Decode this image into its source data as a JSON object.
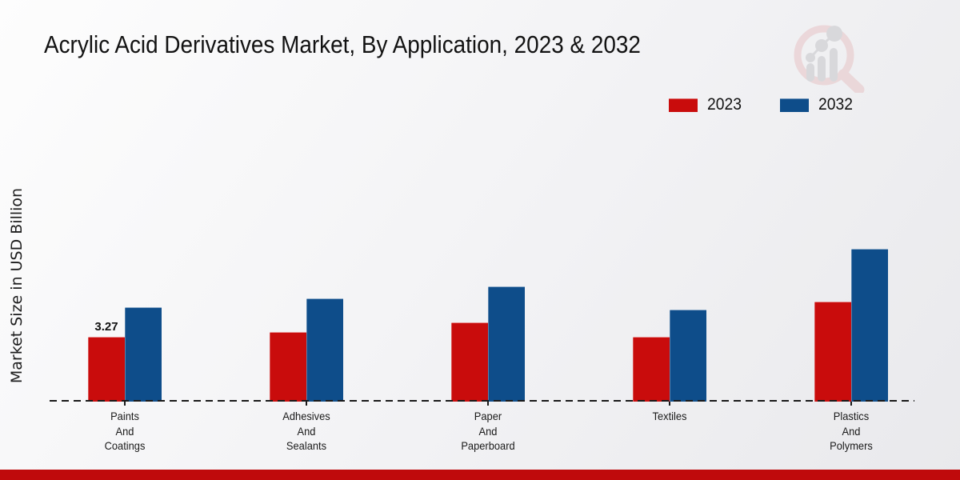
{
  "chart_data": {
    "type": "bar",
    "title": "Acrylic Acid Derivatives Market, By Application, 2023 & 2032",
    "ylabel": "Market Size in USD Billion",
    "xlabel": "",
    "categories": [
      "Paints And Coatings",
      "Adhesives And Sealants",
      "Paper And Paperboard",
      "Textiles",
      "Plastics And Polymers"
    ],
    "series": [
      {
        "name": "2023",
        "color": "#c90c0c",
        "values": [
          3.27,
          3.51,
          4.0,
          3.27,
          5.05
        ]
      },
      {
        "name": "2032",
        "color": "#0e4d8a",
        "values": [
          4.75,
          5.2,
          5.81,
          4.65,
          7.71
        ]
      }
    ],
    "bar_labels": [
      {
        "series": "2023",
        "category": "Paints And Coatings",
        "text": "3.27"
      }
    ],
    "ylim": [
      0,
      8.5
    ],
    "grid": "off",
    "y_ticks_visible": false,
    "baseline_style": "dashed",
    "legend_position": "top-right"
  },
  "logo_icon": "magnifier-bar-chart-logo",
  "footer": {
    "color": "#bf0a0c"
  }
}
